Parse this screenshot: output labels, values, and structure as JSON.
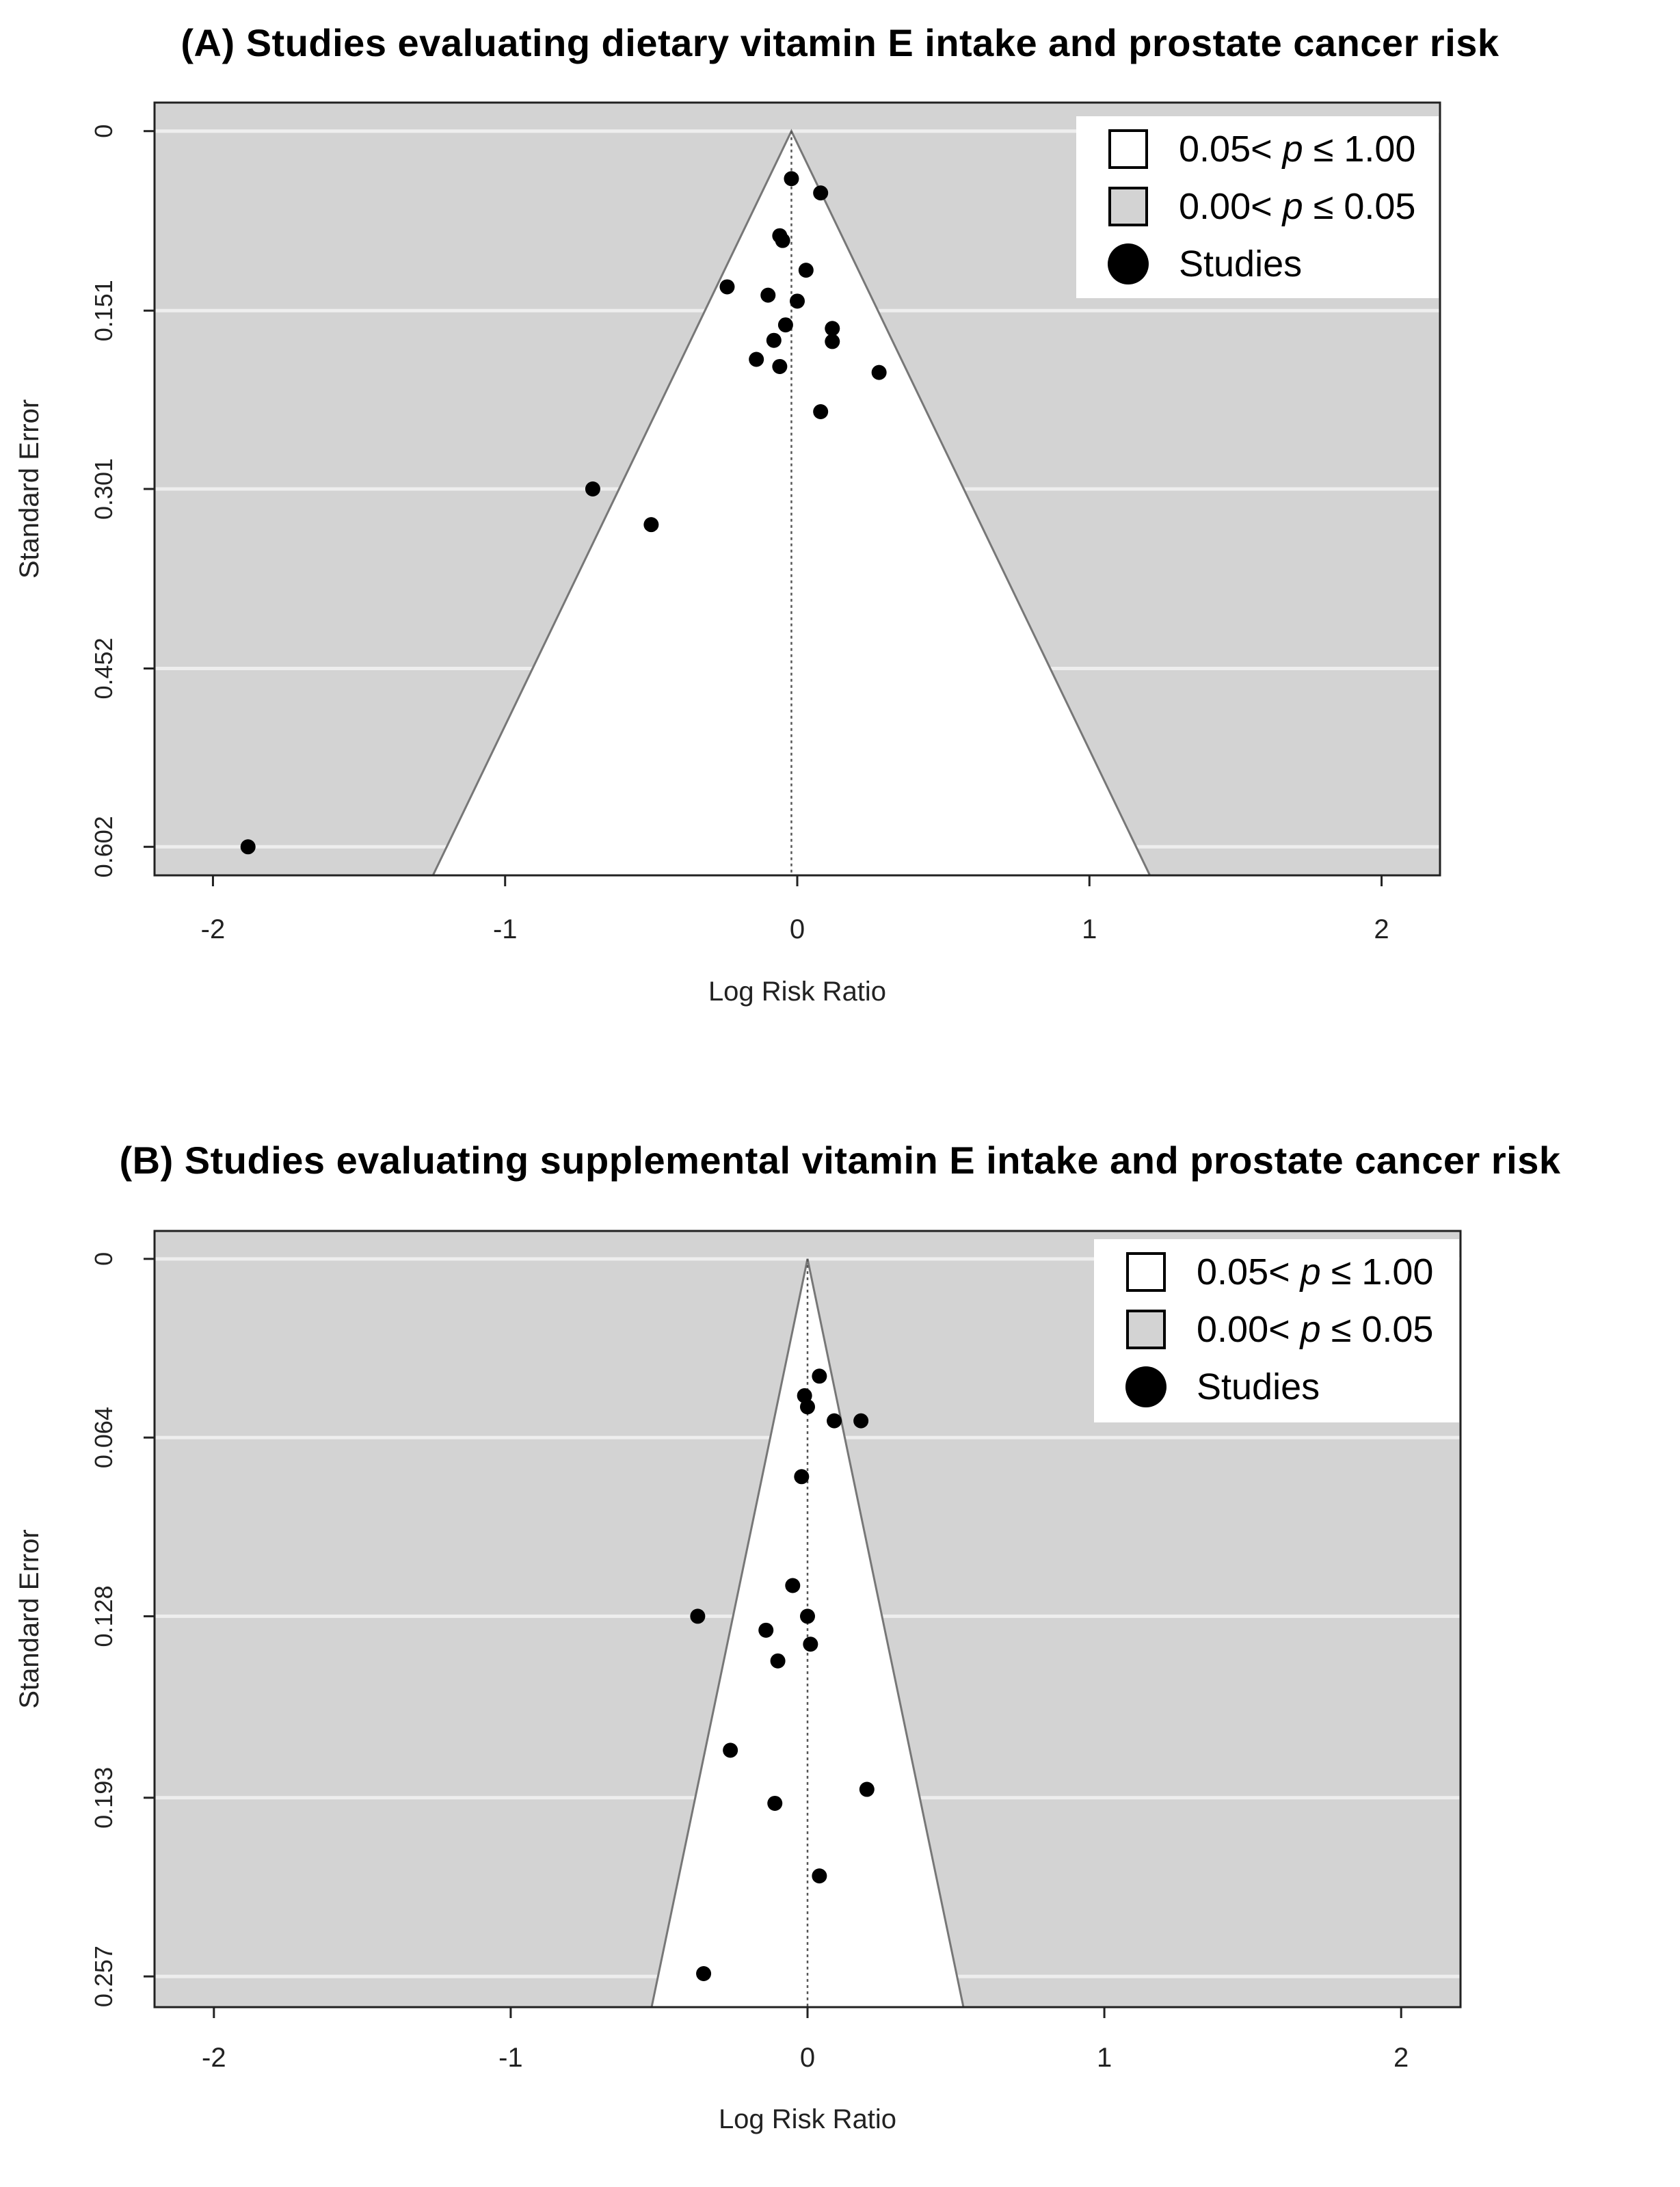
{
  "chart_data": [
    {
      "type": "scatter",
      "title": "(A) Studies evaluating dietary vitamin E intake and prostate cancer risk",
      "xlabel": "Log Risk Ratio",
      "ylabel": "Standard Error",
      "xlim": [
        -2.2,
        2.2
      ],
      "ylim": [
        0.626,
        -0.024
      ],
      "xticks": [
        -2,
        -1,
        0,
        1,
        2
      ],
      "xtick_labels": [
        "-2",
        "-1",
        "0",
        "1",
        "2"
      ],
      "yticks": [
        0,
        0.151,
        0.301,
        0.452,
        0.602
      ],
      "ytick_labels": [
        "0",
        "0.151",
        "0.301",
        "0.452",
        "0.602"
      ],
      "funnel_center": -0.02,
      "grid": true,
      "legend_position": "top-right",
      "legend": [
        {
          "label": "0.05< p ≤ 1.00",
          "symbol": "square",
          "fill": "#ffffff"
        },
        {
          "label": "0.00< p ≤ 0.05",
          "symbol": "square",
          "fill": "#d3d3d3"
        },
        {
          "label": "Studies",
          "symbol": "circle",
          "fill": "#000000"
        }
      ],
      "series": [
        {
          "x": [
            -0.02,
            0.08,
            -0.06,
            -0.05,
            0.03,
            -0.24,
            -0.1,
            0.0,
            -0.04,
            0.12,
            0.12,
            -0.08,
            -0.14,
            -0.06,
            0.28,
            0.08,
            -0.7,
            -0.5,
            -1.88
          ],
          "y": [
            0.04,
            0.052,
            0.088,
            0.092,
            0.117,
            0.131,
            0.138,
            0.143,
            0.163,
            0.166,
            0.177,
            0.176,
            0.192,
            0.198,
            0.203,
            0.236,
            0.301,
            0.331,
            0.602
          ]
        }
      ]
    },
    {
      "type": "scatter",
      "title": "(B) Studies evaluating supplemental vitamin E intake and prostate cancer risk",
      "xlabel": "Log Risk Ratio",
      "ylabel": "Standard Error",
      "xlim": [
        -2.2,
        2.2
      ],
      "ylim": [
        0.268,
        -0.01
      ],
      "xticks": [
        -2,
        -1,
        0,
        1,
        2
      ],
      "xtick_labels": [
        "-2",
        "-1",
        "0",
        "1",
        "2"
      ],
      "yticks": [
        0,
        0.064,
        0.128,
        0.193,
        0.257
      ],
      "ytick_labels": [
        "0",
        "0.064",
        "0.128",
        "0.193",
        "0.257"
      ],
      "funnel_center": 0.0,
      "grid": true,
      "legend_position": "top-right",
      "legend": [
        {
          "label": "0.05< p ≤ 1.00",
          "symbol": "square",
          "fill": "#ffffff"
        },
        {
          "label": "0.00< p ≤ 0.05",
          "symbol": "square",
          "fill": "#d3d3d3"
        },
        {
          "label": "Studies",
          "symbol": "circle",
          "fill": "#000000"
        }
      ],
      "series": [
        {
          "x": [
            0.04,
            -0.01,
            0.0,
            0.09,
            0.18,
            -0.02,
            -0.05,
            -0.37,
            0.0,
            -0.14,
            0.01,
            -0.1,
            -0.26,
            0.2,
            -0.11,
            0.04,
            -0.35
          ],
          "y": [
            0.042,
            0.049,
            0.053,
            0.058,
            0.058,
            0.078,
            0.117,
            0.128,
            0.128,
            0.133,
            0.138,
            0.144,
            0.176,
            0.19,
            0.195,
            0.221,
            0.256
          ]
        }
      ]
    }
  ]
}
